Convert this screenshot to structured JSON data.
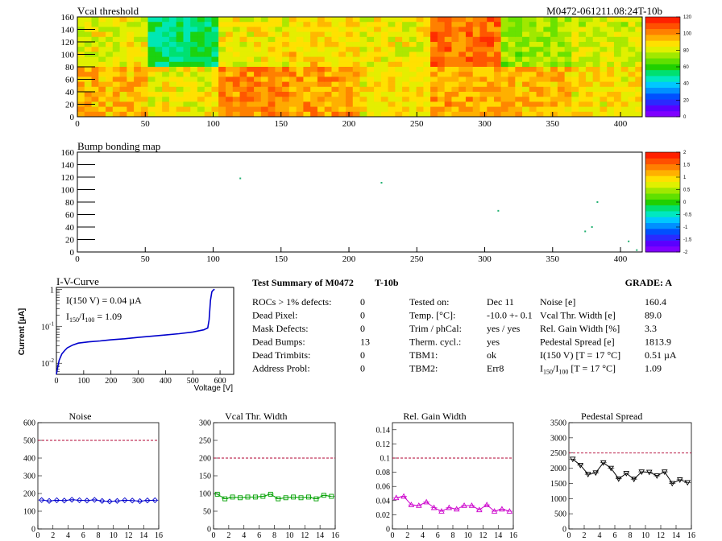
{
  "header": {
    "vcal_title": "Vcal threshold",
    "module_id": "M0472-061211.08:24T-10b",
    "bump_title": "Bump bonding map"
  },
  "maps": {
    "x_ticks": [
      "0",
      "50",
      "100",
      "150",
      "200",
      "250",
      "300",
      "350",
      "400"
    ],
    "y_ticks": [
      "0",
      "20",
      "40",
      "60",
      "80",
      "100",
      "120",
      "140",
      "160"
    ],
    "xlim": [
      0,
      416
    ],
    "ylim": [
      0,
      160
    ],
    "vcal_scale_ticks": [
      "0",
      "20",
      "40",
      "60",
      "80",
      "100",
      "120"
    ],
    "bump_scale_ticks": [
      "-2",
      "-1.5",
      "-1",
      "-0.5",
      "0",
      "0.5",
      "1",
      "1.5",
      "2"
    ],
    "palette": [
      "#7f00ff",
      "#5a00ff",
      "#2a2aff",
      "#0050ff",
      "#0090ff",
      "#00c8ff",
      "#00e8c0",
      "#00e070",
      "#20d000",
      "#60e000",
      "#a0e800",
      "#e0f000",
      "#ffe000",
      "#ffb000",
      "#ff8000",
      "#ff5000",
      "#ff2000"
    ],
    "vcal_grid": {
      "rows_top": [
        0.7,
        0.44,
        0.72,
        0.76,
        0.72,
        0.9,
        0.62,
        0.68
      ],
      "rows_bottom": [
        0.8,
        0.72,
        0.86,
        0.84,
        0.74,
        0.82,
        0.8,
        0.74
      ]
    },
    "bump_points": [
      [
        120,
        118
      ],
      [
        224,
        111
      ],
      [
        310,
        66
      ],
      [
        383,
        80
      ],
      [
        379,
        40
      ],
      [
        374,
        33
      ],
      [
        406,
        17
      ],
      [
        412,
        3
      ]
    ]
  },
  "iv": {
    "title": "I-V-Curve",
    "ylabel": "Current [µA]",
    "xlabel": "Voltage [V]",
    "annot1": "I(150 V) = 0.04 µA",
    "annot2_main": "I",
    "annot2_sub1": "150",
    "annot2_slash": "/I",
    "annot2_sub2": "100",
    "annot2_val": " =  1.09",
    "x_ticks": [
      "0",
      "100",
      "200",
      "300",
      "400",
      "500",
      "600"
    ],
    "y_ticks": [
      "10^{-2}",
      "10^{-1}",
      "1"
    ],
    "y_tick_base": "10",
    "y_tick_exp": [
      "-2",
      "-1"
    ],
    "y_tick_one": "1",
    "line_color": "#0000cc"
  },
  "summary": {
    "title": "Test Summary of M0472",
    "run": "T-10b",
    "grade_label": "GRADE:  A",
    "left_rows": [
      {
        "label": "ROCs > 1% defects:",
        "value": "0"
      },
      {
        "label": "Dead Pixel:",
        "value": "0"
      },
      {
        "label": "Mask Defects:",
        "value": "0"
      },
      {
        "label": "Dead Bumps:",
        "value": "13"
      },
      {
        "label": "Dead Trimbits:",
        "value": "0"
      },
      {
        "label": "Address Probl:",
        "value": "0"
      }
    ],
    "mid_rows": [
      {
        "label": "Tested on:",
        "value": "Dec 11"
      },
      {
        "label": "Temp. [°C]:",
        "value": "-10.0 +- 0.1"
      },
      {
        "label": "Trim / phCal:",
        "value": "yes / yes"
      },
      {
        "label": "Therm. cycl.:",
        "value": "yes"
      },
      {
        "label": "TBM1:",
        "value": "ok"
      },
      {
        "label": "TBM2:",
        "value": "Err8"
      }
    ],
    "right_rows": [
      {
        "label": "Noise [e]",
        "value": "160.4"
      },
      {
        "label": "Vcal Thr. Width [e]",
        "value": "89.0"
      },
      {
        "label": "Rel. Gain Width [%]",
        "value": "3.3"
      },
      {
        "label": "Pedestal Spread [e]",
        "value": "1813.9"
      },
      {
        "label": "I(150 V) [T = 17 °C]",
        "value": "0.51 µA"
      },
      {
        "label": "I150/I100  [T = 17 °C]",
        "value": "1.09"
      }
    ],
    "ratio_label_I": "I",
    "ratio_label_sub1": "150",
    "ratio_label_slash": "/I",
    "ratio_label_sub2": "100",
    "ratio_label_rest": "  [T = 17 °C]"
  },
  "chart_data": [
    {
      "type": "line",
      "title": "Noise",
      "x": [
        0,
        1,
        2,
        3,
        4,
        5,
        6,
        7,
        8,
        9,
        10,
        11,
        12,
        13,
        14,
        15
      ],
      "values": [
        163,
        158,
        162,
        160,
        165,
        162,
        160,
        164,
        158,
        155,
        158,
        162,
        160,
        157,
        161,
        162
      ],
      "ylim": [
        0,
        600
      ],
      "y_ticks": [
        "0",
        "100",
        "200",
        "300",
        "400",
        "500",
        "600"
      ],
      "x_ticks": [
        "0",
        "2",
        "4",
        "6",
        "8",
        "10",
        "12",
        "14",
        "16"
      ],
      "threshold": 500,
      "color": "#0000cc",
      "marker": "diamond"
    },
    {
      "type": "line",
      "title": "Vcal Thr. Width",
      "x": [
        0,
        1,
        2,
        3,
        4,
        5,
        6,
        7,
        8,
        9,
        10,
        11,
        12,
        13,
        14,
        15
      ],
      "values": [
        98,
        85,
        90,
        88,
        90,
        90,
        92,
        98,
        85,
        88,
        90,
        88,
        90,
        85,
        95,
        92
      ],
      "ylim": [
        0,
        300
      ],
      "y_ticks": [
        "0",
        "50",
        "100",
        "150",
        "200",
        "250",
        "300"
      ],
      "x_ticks": [
        "0",
        "2",
        "4",
        "6",
        "8",
        "10",
        "12",
        "14",
        "16"
      ],
      "threshold": 200,
      "color": "#00a000",
      "marker": "square"
    },
    {
      "type": "line",
      "title": "Rel. Gain Width",
      "x": [
        0,
        1,
        2,
        3,
        4,
        5,
        6,
        7,
        8,
        9,
        10,
        11,
        12,
        13,
        14,
        15
      ],
      "values": [
        0.044,
        0.046,
        0.034,
        0.033,
        0.038,
        0.03,
        0.025,
        0.03,
        0.028,
        0.033,
        0.033,
        0.027,
        0.034,
        0.025,
        0.028,
        0.025
      ],
      "ylim": [
        0,
        0.15
      ],
      "y_ticks": [
        "0",
        "0.02",
        "0.04",
        "0.06",
        "0.08",
        "0.1",
        "0.12",
        "0.14"
      ],
      "y_tick_values": [
        0,
        0.02,
        0.04,
        0.06,
        0.08,
        0.1,
        0.12,
        0.14
      ],
      "x_ticks": [
        "0",
        "2",
        "4",
        "6",
        "8",
        "10",
        "12",
        "14",
        "16"
      ],
      "threshold": 0.1,
      "color": "#cc00cc",
      "marker": "triangle"
    },
    {
      "type": "line",
      "title": "Pedestal Spread",
      "x": [
        0,
        1,
        2,
        3,
        4,
        5,
        6,
        7,
        8,
        9,
        10,
        11,
        12,
        13,
        14,
        15
      ],
      "values": [
        2300,
        2100,
        1800,
        1850,
        2180,
        2000,
        1650,
        1830,
        1640,
        1880,
        1870,
        1750,
        1880,
        1500,
        1620,
        1530
      ],
      "ylim": [
        0,
        3500
      ],
      "y_ticks": [
        "0",
        "500",
        "1000",
        "1500",
        "2000",
        "2500",
        "3000",
        "3500"
      ],
      "x_ticks": [
        "0",
        "2",
        "4",
        "6",
        "8",
        "10",
        "12",
        "14",
        "16"
      ],
      "threshold": 2500,
      "color": "#000000",
      "marker": "invtriangle"
    }
  ]
}
